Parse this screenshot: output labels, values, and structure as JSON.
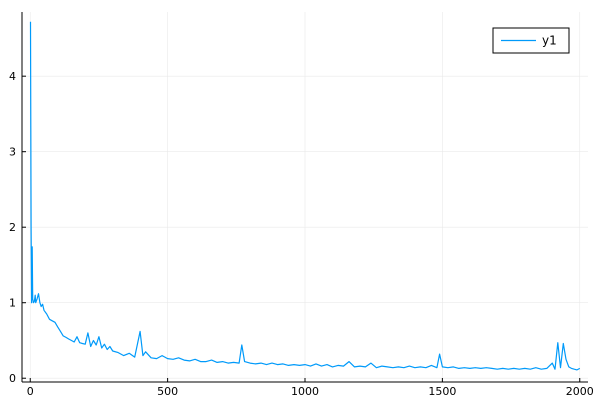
{
  "chart_data": {
    "type": "line",
    "title": "",
    "xlabel": "",
    "ylabel": "",
    "xlim": [
      -30,
      2030
    ],
    "ylim": [
      -0.05,
      4.85
    ],
    "xticks": [
      0,
      500,
      1000,
      1500,
      2000
    ],
    "yticks": [
      0,
      1,
      2,
      3,
      4
    ],
    "xtick_labels": [
      "0",
      "500",
      "1000",
      "1500",
      "2000"
    ],
    "ytick_labels": [
      "0",
      "1",
      "2",
      "3",
      "4"
    ],
    "grid": true,
    "legend": {
      "position": "top-right"
    },
    "colors": {
      "series": "#009AFA",
      "grid": "#E9E9E9",
      "axis": "#000000"
    },
    "series": [
      {
        "name": "y1",
        "color": "#009AFA",
        "x": [
          1,
          3,
          5,
          7,
          9,
          12,
          15,
          18,
          20,
          25,
          30,
          35,
          40,
          45,
          50,
          60,
          70,
          80,
          90,
          100,
          110,
          120,
          130,
          140,
          150,
          160,
          170,
          180,
          190,
          200,
          210,
          220,
          230,
          240,
          250,
          260,
          270,
          280,
          290,
          300,
          320,
          340,
          360,
          380,
          400,
          410,
          420,
          440,
          460,
          480,
          500,
          520,
          540,
          560,
          580,
          600,
          620,
          640,
          660,
          680,
          700,
          720,
          740,
          760,
          770,
          780,
          800,
          820,
          840,
          860,
          880,
          900,
          920,
          940,
          960,
          980,
          1000,
          1020,
          1040,
          1060,
          1080,
          1100,
          1120,
          1140,
          1160,
          1180,
          1200,
          1220,
          1240,
          1260,
          1280,
          1300,
          1320,
          1340,
          1360,
          1380,
          1400,
          1420,
          1440,
          1460,
          1480,
          1490,
          1500,
          1520,
          1540,
          1560,
          1580,
          1600,
          1620,
          1640,
          1660,
          1680,
          1700,
          1720,
          1740,
          1760,
          1780,
          1800,
          1820,
          1840,
          1860,
          1880,
          1900,
          1910,
          1920,
          1930,
          1940,
          1950,
          1960,
          1970,
          1980,
          1990,
          2000
        ],
        "y": [
          4.72,
          2.0,
          1.0,
          1.74,
          1.05,
          1.0,
          1.02,
          1.1,
          1.0,
          1.05,
          1.12,
          1.0,
          0.95,
          0.98,
          0.9,
          0.85,
          0.78,
          0.76,
          0.74,
          0.68,
          0.62,
          0.56,
          0.54,
          0.52,
          0.5,
          0.48,
          0.55,
          0.47,
          0.46,
          0.45,
          0.6,
          0.42,
          0.5,
          0.44,
          0.55,
          0.4,
          0.45,
          0.38,
          0.42,
          0.36,
          0.34,
          0.3,
          0.33,
          0.28,
          0.62,
          0.3,
          0.35,
          0.27,
          0.26,
          0.3,
          0.26,
          0.25,
          0.27,
          0.24,
          0.23,
          0.25,
          0.22,
          0.22,
          0.24,
          0.21,
          0.22,
          0.2,
          0.21,
          0.2,
          0.44,
          0.22,
          0.2,
          0.19,
          0.2,
          0.18,
          0.2,
          0.18,
          0.19,
          0.17,
          0.18,
          0.17,
          0.18,
          0.16,
          0.19,
          0.16,
          0.18,
          0.15,
          0.17,
          0.16,
          0.22,
          0.15,
          0.16,
          0.15,
          0.2,
          0.14,
          0.16,
          0.15,
          0.14,
          0.15,
          0.14,
          0.16,
          0.14,
          0.15,
          0.14,
          0.17,
          0.14,
          0.32,
          0.15,
          0.14,
          0.15,
          0.13,
          0.14,
          0.13,
          0.14,
          0.13,
          0.14,
          0.13,
          0.12,
          0.13,
          0.12,
          0.13,
          0.12,
          0.13,
          0.12,
          0.14,
          0.12,
          0.13,
          0.2,
          0.12,
          0.47,
          0.14,
          0.46,
          0.25,
          0.15,
          0.13,
          0.12,
          0.11,
          0.13
        ]
      }
    ]
  }
}
